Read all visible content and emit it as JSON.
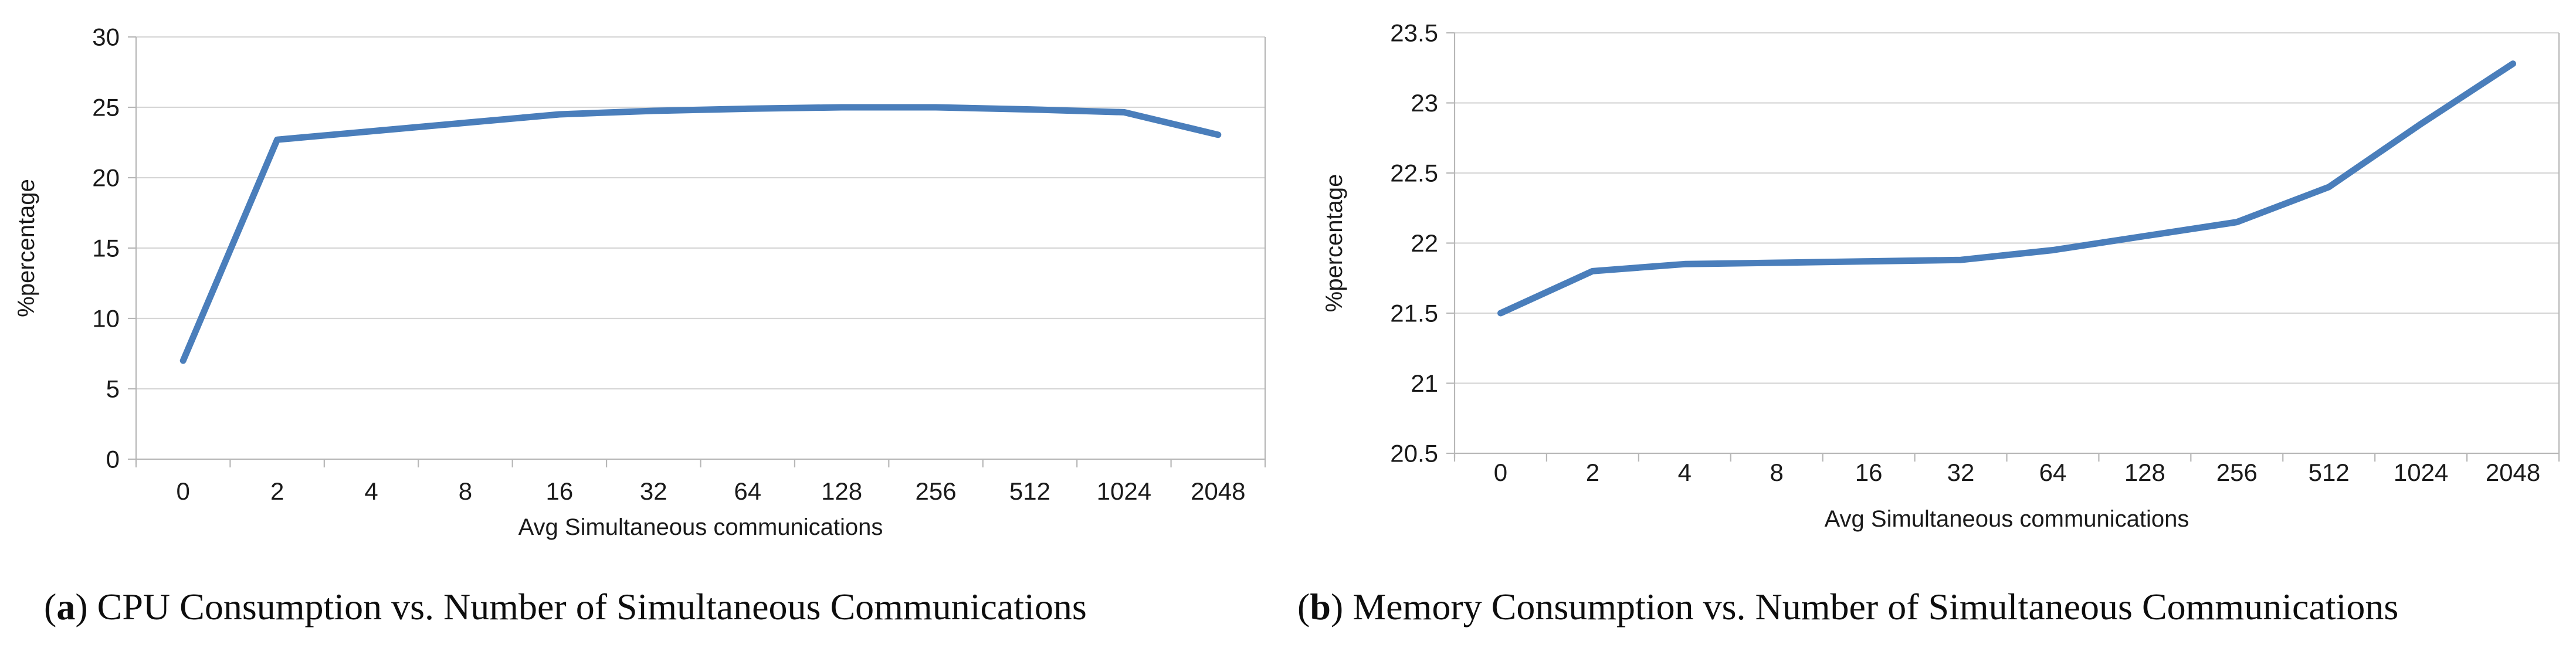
{
  "colors": {
    "line": "#4a7ebb",
    "gridline": "#d6d6d6",
    "axis": "#b7b7b7",
    "text": "#1a1a1a"
  },
  "captions": [
    {
      "open": "(",
      "letter": "a",
      "close": ")",
      "title": " CPU Consumption vs. Number of Simultaneous Communications"
    },
    {
      "open": "(",
      "letter": "b",
      "close": ")",
      "title": " Memory Consumption vs. Number of Simultaneous Communications"
    }
  ],
  "chart_data": [
    {
      "id": "cpu",
      "type": "line",
      "title": "",
      "categories": [
        "0",
        "2",
        "4",
        "8",
        "16",
        "32",
        "64",
        "128",
        "256",
        "512",
        "1024",
        "2048"
      ],
      "values": [
        7,
        22.7,
        23.3,
        23.9,
        24.5,
        24.75,
        24.9,
        25,
        25,
        24.85,
        24.65,
        23.05
      ],
      "xlabel": "Avg Simultaneous communications",
      "ylabel": "%percentage",
      "ylim": [
        0,
        30
      ],
      "ytick_step": 5,
      "grid": true,
      "legend": false
    },
    {
      "id": "memory",
      "type": "line",
      "title": "",
      "categories": [
        "0",
        "2",
        "4",
        "8",
        "16",
        "32",
        "64",
        "128",
        "256",
        "512",
        "1024",
        "2048"
      ],
      "values": [
        21.5,
        21.8,
        21.85,
        21.86,
        21.87,
        21.88,
        21.95,
        22.05,
        22.15,
        22.4,
        22.85,
        23.28
      ],
      "xlabel": "Avg Simultaneous communications",
      "ylabel": "%percentage",
      "ylim": [
        20.5,
        23.5
      ],
      "ytick_step": 0.5,
      "grid": true,
      "legend": false
    }
  ]
}
